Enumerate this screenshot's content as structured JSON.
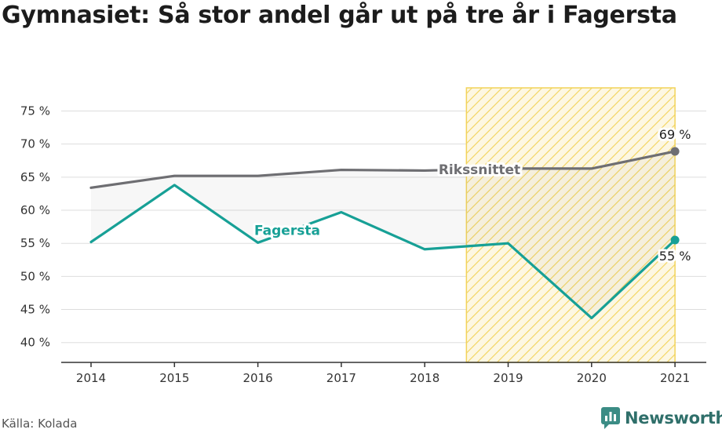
{
  "title": "Gymnasiet: Så stor andel går ut på tre år i Fagersta",
  "source": "Källa: Kolada",
  "brand": {
    "name": "Newsworthy",
    "icon": "newsworthy-logo-icon"
  },
  "colors": {
    "fagersta": "#17a096",
    "riket": "#6e6e72",
    "highlight": "#f2d35a",
    "axis": "#333333",
    "grid": "#dddddd"
  },
  "chart_data": {
    "type": "line",
    "x": [
      "2014",
      "2015",
      "2016",
      "2017",
      "2018",
      "2019",
      "2020",
      "2021"
    ],
    "series": [
      {
        "name": "Rikssnittet",
        "values": [
          63.4,
          65.2,
          65.2,
          66.1,
          66.0,
          66.3,
          66.3,
          68.9
        ],
        "end_label": "69 %"
      },
      {
        "name": "Fagersta",
        "values": [
          55.2,
          63.8,
          55.1,
          59.7,
          54.1,
          55.0,
          43.7,
          55.5
        ],
        "end_label": "55 %"
      }
    ],
    "yticks": [
      "40 %",
      "45 %",
      "50 %",
      "55 %",
      "60 %",
      "65 %",
      "70 %",
      "75 %"
    ],
    "ylim": [
      37,
      78.5
    ],
    "highlight_range": [
      "2018.5",
      "2021"
    ],
    "grid": true
  }
}
